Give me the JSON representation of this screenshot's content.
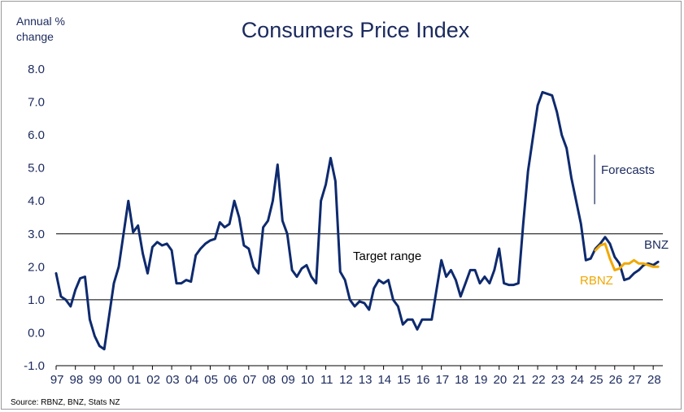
{
  "chart_data": {
    "type": "line",
    "title": "Consumers Price Index",
    "ylabel_line1": "Annual %",
    "ylabel_line2": "change",
    "ylim": [
      -1.0,
      8.0
    ],
    "yticks": [
      "8.0",
      "7.0",
      "6.0",
      "5.0",
      "4.0",
      "3.0",
      "2.0",
      "1.0",
      "0.0",
      "-1.0"
    ],
    "xlim": [
      1997,
      2028.5
    ],
    "xticks": [
      "97",
      "98",
      "99",
      "00",
      "01",
      "02",
      "03",
      "04",
      "05",
      "06",
      "07",
      "08",
      "09",
      "10",
      "11",
      "12",
      "13",
      "14",
      "15",
      "16",
      "17",
      "18",
      "19",
      "20",
      "21",
      "22",
      "23",
      "24",
      "25",
      "26",
      "27",
      "28"
    ],
    "target_range": [
      1.0,
      3.0
    ],
    "target_label": "Target range",
    "forecast_label": "Forecasts",
    "forecast_start": 2025,
    "source": "Source: RBNZ, BNZ, Stats NZ",
    "colors": {
      "bnz": "#0e2a6e",
      "rbnz": "#f0a800",
      "text": "#1b2a5e"
    },
    "series": [
      {
        "name": "BNZ",
        "points": [
          [
            1997.0,
            1.8
          ],
          [
            1997.25,
            1.1
          ],
          [
            1997.5,
            1.0
          ],
          [
            1997.75,
            0.8
          ],
          [
            1998.0,
            1.3
          ],
          [
            1998.25,
            1.65
          ],
          [
            1998.5,
            1.7
          ],
          [
            1998.75,
            0.4
          ],
          [
            1999.0,
            -0.1
          ],
          [
            1999.25,
            -0.4
          ],
          [
            1999.5,
            -0.5
          ],
          [
            1999.75,
            0.5
          ],
          [
            2000.0,
            1.5
          ],
          [
            2000.25,
            2.0
          ],
          [
            2000.5,
            3.0
          ],
          [
            2000.75,
            4.0
          ],
          [
            2001.0,
            3.05
          ],
          [
            2001.25,
            3.25
          ],
          [
            2001.5,
            2.4
          ],
          [
            2001.75,
            1.8
          ],
          [
            2002.0,
            2.6
          ],
          [
            2002.25,
            2.75
          ],
          [
            2002.5,
            2.65
          ],
          [
            2002.75,
            2.7
          ],
          [
            2003.0,
            2.5
          ],
          [
            2003.25,
            1.5
          ],
          [
            2003.5,
            1.5
          ],
          [
            2003.75,
            1.6
          ],
          [
            2004.0,
            1.55
          ],
          [
            2004.25,
            2.35
          ],
          [
            2004.5,
            2.55
          ],
          [
            2004.75,
            2.7
          ],
          [
            2005.0,
            2.8
          ],
          [
            2005.25,
            2.85
          ],
          [
            2005.5,
            3.35
          ],
          [
            2005.75,
            3.2
          ],
          [
            2006.0,
            3.3
          ],
          [
            2006.25,
            4.0
          ],
          [
            2006.5,
            3.5
          ],
          [
            2006.75,
            2.65
          ],
          [
            2007.0,
            2.55
          ],
          [
            2007.25,
            2.0
          ],
          [
            2007.5,
            1.8
          ],
          [
            2007.75,
            3.2
          ],
          [
            2008.0,
            3.4
          ],
          [
            2008.25,
            4.0
          ],
          [
            2008.5,
            5.1
          ],
          [
            2008.75,
            3.4
          ],
          [
            2009.0,
            3.0
          ],
          [
            2009.25,
            1.9
          ],
          [
            2009.5,
            1.7
          ],
          [
            2009.75,
            1.95
          ],
          [
            2010.0,
            2.05
          ],
          [
            2010.25,
            1.7
          ],
          [
            2010.5,
            1.5
          ],
          [
            2010.75,
            4.0
          ],
          [
            2011.0,
            4.5
          ],
          [
            2011.25,
            5.3
          ],
          [
            2011.5,
            4.6
          ],
          [
            2011.75,
            1.85
          ],
          [
            2012.0,
            1.6
          ],
          [
            2012.25,
            1.0
          ],
          [
            2012.5,
            0.8
          ],
          [
            2012.75,
            0.95
          ],
          [
            2013.0,
            0.9
          ],
          [
            2013.25,
            0.7
          ],
          [
            2013.5,
            1.35
          ],
          [
            2013.75,
            1.6
          ],
          [
            2014.0,
            1.5
          ],
          [
            2014.25,
            1.6
          ],
          [
            2014.5,
            1.0
          ],
          [
            2014.75,
            0.8
          ],
          [
            2015.0,
            0.25
          ],
          [
            2015.25,
            0.4
          ],
          [
            2015.5,
            0.4
          ],
          [
            2015.75,
            0.1
          ],
          [
            2016.0,
            0.4
          ],
          [
            2016.25,
            0.4
          ],
          [
            2016.5,
            0.4
          ],
          [
            2016.75,
            1.3
          ],
          [
            2017.0,
            2.2
          ],
          [
            2017.25,
            1.7
          ],
          [
            2017.5,
            1.9
          ],
          [
            2017.75,
            1.6
          ],
          [
            2018.0,
            1.1
          ],
          [
            2018.25,
            1.5
          ],
          [
            2018.5,
            1.9
          ],
          [
            2018.75,
            1.9
          ],
          [
            2019.0,
            1.5
          ],
          [
            2019.25,
            1.7
          ],
          [
            2019.5,
            1.5
          ],
          [
            2019.75,
            1.9
          ],
          [
            2020.0,
            2.55
          ],
          [
            2020.25,
            1.5
          ],
          [
            2020.5,
            1.45
          ],
          [
            2020.75,
            1.45
          ],
          [
            2021.0,
            1.5
          ],
          [
            2021.25,
            3.3
          ],
          [
            2021.5,
            4.9
          ],
          [
            2021.75,
            5.9
          ],
          [
            2022.0,
            6.9
          ],
          [
            2022.25,
            7.3
          ],
          [
            2022.5,
            7.25
          ],
          [
            2022.75,
            7.2
          ],
          [
            2023.0,
            6.7
          ],
          [
            2023.25,
            6.0
          ],
          [
            2023.5,
            5.6
          ],
          [
            2023.75,
            4.7
          ],
          [
            2024.0,
            4.0
          ],
          [
            2024.25,
            3.3
          ],
          [
            2024.5,
            2.2
          ],
          [
            2024.75,
            2.25
          ],
          [
            2025.0,
            2.55
          ],
          [
            2025.25,
            2.7
          ],
          [
            2025.5,
            2.9
          ],
          [
            2025.75,
            2.7
          ],
          [
            2026.0,
            2.3
          ],
          [
            2026.25,
            2.1
          ],
          [
            2026.5,
            1.6
          ],
          [
            2026.75,
            1.65
          ],
          [
            2027.0,
            1.8
          ],
          [
            2027.25,
            1.9
          ],
          [
            2027.5,
            2.05
          ],
          [
            2027.75,
            2.1
          ],
          [
            2028.0,
            2.05
          ],
          [
            2028.25,
            2.15
          ]
        ]
      },
      {
        "name": "RBNZ",
        "points": [
          [
            2025.0,
            2.5
          ],
          [
            2025.25,
            2.65
          ],
          [
            2025.5,
            2.7
          ],
          [
            2025.75,
            2.25
          ],
          [
            2026.0,
            1.9
          ],
          [
            2026.25,
            1.95
          ],
          [
            2026.5,
            2.1
          ],
          [
            2026.75,
            2.1
          ],
          [
            2027.0,
            2.2
          ],
          [
            2027.25,
            2.1
          ],
          [
            2027.5,
            2.1
          ],
          [
            2027.75,
            2.05
          ],
          [
            2028.0,
            2.0
          ],
          [
            2028.25,
            2.0
          ]
        ]
      }
    ]
  }
}
